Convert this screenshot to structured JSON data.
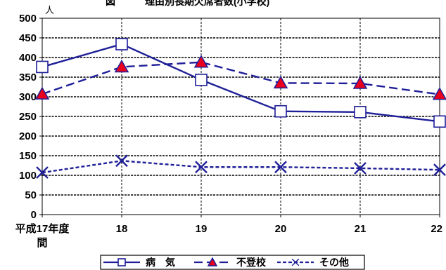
{
  "chart_data": {
    "type": "line",
    "title": "図　　　理由別長期欠席者数(小学校)",
    "unit_label": "人",
    "categories": [
      "平成17年度間",
      "18",
      "19",
      "20",
      "21",
      "22"
    ],
    "ylim": [
      0,
      500
    ],
    "ytick_step": 50,
    "grid": true,
    "legend_position": "bottom",
    "series": [
      {
        "name": "病　気",
        "values": [
          376,
          434,
          343,
          263,
          261,
          237
        ],
        "color": "#1f1f99",
        "dash": "solid",
        "marker": "square"
      },
      {
        "name": "不登校",
        "values": [
          307,
          376,
          388,
          335,
          334,
          306
        ],
        "color": "#1f1f99",
        "dash": "dashed",
        "marker": "triangle"
      },
      {
        "name": "その他",
        "values": [
          107,
          137,
          121,
          121,
          118,
          114
        ],
        "color": "#1f1f99",
        "dash": "dotted",
        "marker": "x"
      }
    ]
  }
}
